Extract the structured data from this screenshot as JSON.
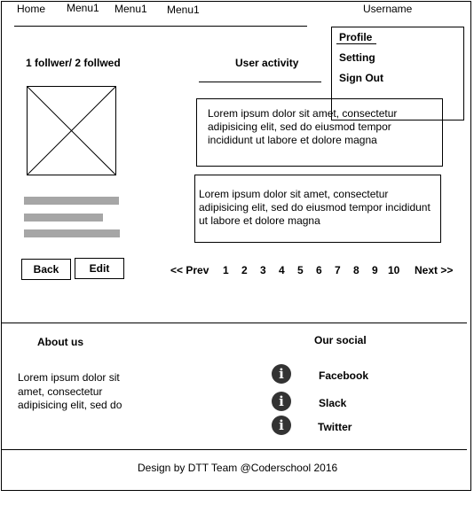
{
  "nav": {
    "home": "Home",
    "menus": [
      "Menu1",
      "Menu1",
      "Menu1"
    ],
    "username": "Username"
  },
  "dropdown": {
    "items": [
      "Profile",
      "Setting",
      "Sign Out"
    ]
  },
  "profile": {
    "follow_text": "1 follwer/ 2 follwed",
    "back_label": "Back",
    "edit_label": "Edit"
  },
  "activity": {
    "title": "User activity",
    "posts": [
      "Lorem ipsum dolor sit amet, consectetur adipisicing elit, sed do eiusmod tempor incididunt ut labore et dolore magna",
      "Lorem ipsum dolor sit amet, consectetur adipisicing elit, sed do eiusmod tempor incididunt ut labore et dolore magna"
    ]
  },
  "pagination": {
    "prev": "<< Prev",
    "pages": [
      "1",
      "2",
      "3",
      "4",
      "5",
      "6",
      "7",
      "8",
      "9",
      "10"
    ],
    "next": "Next >>"
  },
  "footer": {
    "about_title": "About us",
    "about_text": "Lorem ipsum dolor sit amet, consectetur adipisicing elit, sed do",
    "social_title": "Our social",
    "social_links": [
      "Facebook",
      "Slack",
      "Twitter"
    ],
    "credit": "Design by DTT Team @Coderschool 2016"
  },
  "icons": {
    "image_placeholder": "image-placeholder-icon",
    "social": "info-icon"
  }
}
